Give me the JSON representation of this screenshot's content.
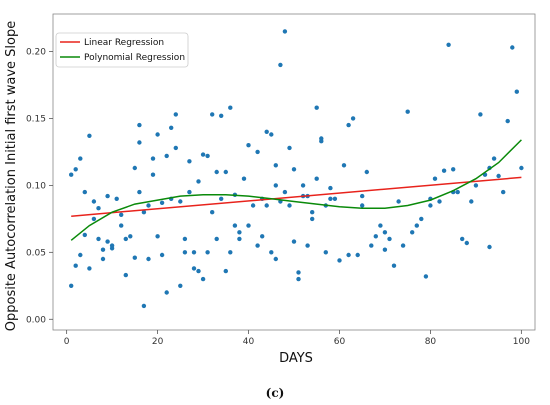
{
  "caption": "(c)",
  "colors": {
    "points": "#1f77b4",
    "linear": "#e8231c",
    "poly": "#0a8a0a"
  },
  "chart_data": {
    "type": "scatter",
    "xlabel": "DAYS",
    "ylabel": "Opposite Autocorrelation Initial first wave Slope",
    "xlim": [
      -3,
      103
    ],
    "ylim": [
      -0.008,
      0.228
    ],
    "xticks": [
      0,
      20,
      40,
      60,
      80,
      100
    ],
    "xtick_labels": [
      "0",
      "20",
      "40",
      "60",
      "80",
      "100"
    ],
    "yticks": [
      0.0,
      0.05,
      0.1,
      0.15,
      0.2
    ],
    "ytick_labels": [
      "0.00",
      "0.05",
      "0.10",
      "0.15",
      "0.20"
    ],
    "legend_position": "top-left",
    "grid": false,
    "legend": [
      {
        "name": "Linear Regression",
        "color": "#e8231c"
      },
      {
        "name": "Polynomial Regression",
        "color": "#0a8a0a"
      }
    ],
    "points": [
      [
        1,
        0.025
      ],
      [
        1,
        0.108
      ],
      [
        2,
        0.112
      ],
      [
        2,
        0.04
      ],
      [
        3,
        0.12
      ],
      [
        3,
        0.048
      ],
      [
        4,
        0.095
      ],
      [
        4,
        0.063
      ],
      [
        5,
        0.137
      ],
      [
        5,
        0.038
      ],
      [
        6,
        0.075
      ],
      [
        6,
        0.088
      ],
      [
        7,
        0.06
      ],
      [
        7,
        0.083
      ],
      [
        8,
        0.045
      ],
      [
        8,
        0.052
      ],
      [
        9,
        0.092
      ],
      [
        9,
        0.058
      ],
      [
        10,
        0.053
      ],
      [
        10,
        0.055
      ],
      [
        11,
        0.09
      ],
      [
        12,
        0.07
      ],
      [
        12,
        0.078
      ],
      [
        13,
        0.033
      ],
      [
        13,
        0.06
      ],
      [
        14,
        0.062
      ],
      [
        15,
        0.113
      ],
      [
        15,
        0.046
      ],
      [
        16,
        0.095
      ],
      [
        16,
        0.145
      ],
      [
        16,
        0.132
      ],
      [
        17,
        0.01
      ],
      [
        17,
        0.08
      ],
      [
        18,
        0.085
      ],
      [
        18,
        0.045
      ],
      [
        19,
        0.12
      ],
      [
        19,
        0.108
      ],
      [
        20,
        0.138
      ],
      [
        20,
        0.062
      ],
      [
        21,
        0.048
      ],
      [
        21,
        0.087
      ],
      [
        22,
        0.122
      ],
      [
        22,
        0.02
      ],
      [
        23,
        0.09
      ],
      [
        23,
        0.143
      ],
      [
        24,
        0.128
      ],
      [
        24,
        0.153
      ],
      [
        25,
        0.088
      ],
      [
        25,
        0.025
      ],
      [
        26,
        0.06
      ],
      [
        26,
        0.05
      ],
      [
        27,
        0.118
      ],
      [
        27,
        0.095
      ],
      [
        28,
        0.05
      ],
      [
        28,
        0.038
      ],
      [
        29,
        0.103
      ],
      [
        29,
        0.036
      ],
      [
        30,
        0.123
      ],
      [
        30,
        0.03
      ],
      [
        31,
        0.122
      ],
      [
        31,
        0.05
      ],
      [
        32,
        0.153
      ],
      [
        32,
        0.08
      ],
      [
        33,
        0.11
      ],
      [
        33,
        0.06
      ],
      [
        34,
        0.152
      ],
      [
        34,
        0.09
      ],
      [
        35,
        0.11
      ],
      [
        35,
        0.036
      ],
      [
        36,
        0.158
      ],
      [
        36,
        0.05
      ],
      [
        37,
        0.093
      ],
      [
        37,
        0.07
      ],
      [
        38,
        0.06
      ],
      [
        38,
        0.065
      ],
      [
        39,
        0.105
      ],
      [
        40,
        0.13
      ],
      [
        40,
        0.07
      ],
      [
        41,
        0.085
      ],
      [
        42,
        0.125
      ],
      [
        42,
        0.055
      ],
      [
        43,
        0.09
      ],
      [
        43,
        0.062
      ],
      [
        44,
        0.14
      ],
      [
        44,
        0.085
      ],
      [
        45,
        0.138
      ],
      [
        45,
        0.05
      ],
      [
        46,
        0.115
      ],
      [
        46,
        0.1
      ],
      [
        46,
        0.045
      ],
      [
        47,
        0.088
      ],
      [
        47,
        0.19
      ],
      [
        48,
        0.215
      ],
      [
        48,
        0.095
      ],
      [
        49,
        0.128
      ],
      [
        49,
        0.085
      ],
      [
        50,
        0.112
      ],
      [
        50,
        0.058
      ],
      [
        51,
        0.035
      ],
      [
        51,
        0.03
      ],
      [
        52,
        0.092
      ],
      [
        52,
        0.1
      ],
      [
        53,
        0.092
      ],
      [
        53,
        0.055
      ],
      [
        54,
        0.08
      ],
      [
        54,
        0.075
      ],
      [
        55,
        0.158
      ],
      [
        55,
        0.105
      ],
      [
        56,
        0.135
      ],
      [
        56,
        0.133
      ],
      [
        57,
        0.085
      ],
      [
        57,
        0.05
      ],
      [
        58,
        0.098
      ],
      [
        58,
        0.09
      ],
      [
        59,
        0.09
      ],
      [
        60,
        0.044
      ],
      [
        61,
        0.115
      ],
      [
        62,
        0.145
      ],
      [
        62,
        0.048
      ],
      [
        63,
        0.15
      ],
      [
        64,
        0.048
      ],
      [
        65,
        0.085
      ],
      [
        65,
        0.092
      ],
      [
        66,
        0.11
      ],
      [
        67,
        0.055
      ],
      [
        68,
        0.062
      ],
      [
        69,
        0.07
      ],
      [
        70,
        0.065
      ],
      [
        70,
        0.052
      ],
      [
        71,
        0.06
      ],
      [
        72,
        0.04
      ],
      [
        73,
        0.088
      ],
      [
        74,
        0.055
      ],
      [
        75,
        0.155
      ],
      [
        76,
        0.065
      ],
      [
        77,
        0.07
      ],
      [
        78,
        0.075
      ],
      [
        79,
        0.032
      ],
      [
        80,
        0.085
      ],
      [
        80,
        0.09
      ],
      [
        81,
        0.105
      ],
      [
        82,
        0.088
      ],
      [
        83,
        0.111
      ],
      [
        84,
        0.205
      ],
      [
        85,
        0.112
      ],
      [
        85,
        0.095
      ],
      [
        86,
        0.095
      ],
      [
        87,
        0.06
      ],
      [
        88,
        0.057
      ],
      [
        89,
        0.088
      ],
      [
        90,
        0.1
      ],
      [
        91,
        0.153
      ],
      [
        92,
        0.108
      ],
      [
        93,
        0.113
      ],
      [
        93,
        0.054
      ],
      [
        94,
        0.12
      ],
      [
        95,
        0.107
      ],
      [
        96,
        0.095
      ],
      [
        97,
        0.148
      ],
      [
        98,
        0.203
      ],
      [
        99,
        0.17
      ],
      [
        100,
        0.113
      ]
    ],
    "linear_regression": {
      "x": [
        1,
        100
      ],
      "y": [
        0.077,
        0.106
      ]
    },
    "polynomial_regression": {
      "x": [
        1,
        5,
        10,
        15,
        20,
        25,
        30,
        35,
        40,
        45,
        50,
        55,
        60,
        65,
        70,
        75,
        80,
        85,
        90,
        95,
        100
      ],
      "y": [
        0.059,
        0.07,
        0.08,
        0.086,
        0.089,
        0.092,
        0.093,
        0.093,
        0.092,
        0.09,
        0.088,
        0.086,
        0.084,
        0.083,
        0.083,
        0.085,
        0.089,
        0.096,
        0.105,
        0.117,
        0.134
      ]
    }
  }
}
